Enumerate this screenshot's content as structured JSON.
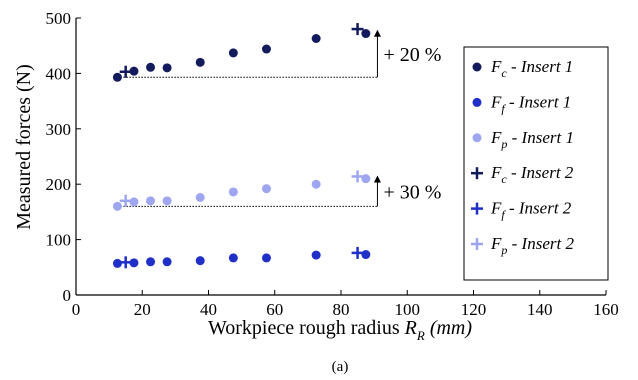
{
  "chart_data": {
    "type": "scatter",
    "xlabel": "Workpiece rough radius R_R (mm)",
    "xlabel_prefix": "Workpiece rough radius ",
    "xlabel_var": "R",
    "xlabel_sub": "R",
    "xlabel_unit": " (mm)",
    "ylabel": "Measured forces (N)",
    "xlim": [
      0,
      160
    ],
    "ylim": [
      0,
      500
    ],
    "xticks": [
      0,
      20,
      40,
      60,
      80,
      100,
      120,
      140,
      160
    ],
    "yticks": [
      0,
      100,
      200,
      300,
      400,
      500
    ],
    "grid": false,
    "legend_position": "right",
    "colors": {
      "fc": "#141b5c",
      "ff": "#1f2fc8",
      "fp": "#9ea6f0"
    },
    "series": [
      {
        "name": "Fc - Insert 1",
        "var": "F",
        "sub": "c",
        "label_tail": " - Insert 1",
        "marker": "circle",
        "color": "#141b5c",
        "x": [
          12.5,
          17.5,
          22.5,
          27.5,
          37.5,
          47.5,
          57.5,
          72.5,
          87.5
        ],
        "y": [
          393,
          404,
          411,
          410,
          420,
          437,
          444,
          463,
          472
        ]
      },
      {
        "name": "Ff - Insert 1",
        "var": "F",
        "sub": "f",
        "label_tail": " - Insert 1",
        "marker": "circle",
        "color": "#1f2fc8",
        "x": [
          12.5,
          17.5,
          22.5,
          27.5,
          37.5,
          47.5,
          57.5,
          72.5,
          87.5
        ],
        "y": [
          57,
          58,
          60,
          60,
          62,
          67,
          67,
          72,
          73
        ]
      },
      {
        "name": "Fp - Insert 1",
        "var": "F",
        "sub": "p",
        "label_tail": " - Insert 1",
        "marker": "circle",
        "color": "#9ea6f0",
        "x": [
          12.5,
          17.5,
          22.5,
          27.5,
          37.5,
          47.5,
          57.5,
          72.5,
          87.5
        ],
        "y": [
          160,
          168,
          170,
          170,
          176,
          186,
          192,
          200,
          210
        ]
      },
      {
        "name": "Fc - Insert 2",
        "var": "F",
        "sub": "c",
        "label_tail": " - Insert 2",
        "marker": "plus",
        "color": "#141b5c",
        "x": [
          15,
          85
        ],
        "y": [
          403,
          480
        ]
      },
      {
        "name": "Ff - Insert 2",
        "var": "F",
        "sub": "f",
        "label_tail": " - Insert 2",
        "marker": "plus",
        "color": "#1f2fc8",
        "x": [
          15,
          85
        ],
        "y": [
          59,
          76
        ]
      },
      {
        "name": "Fp - Insert 2",
        "var": "F",
        "sub": "p",
        "label_tail": " - Insert 2",
        "marker": "plus",
        "color": "#9ea6f0",
        "x": [
          15,
          85
        ],
        "y": [
          170,
          214
        ]
      }
    ],
    "annotations": [
      {
        "text": "+ 20 %",
        "x_from": 12.5,
        "x_to": 91,
        "y_base": 393,
        "y_top": 477
      },
      {
        "text": "+ 30 %",
        "x_from": 12.5,
        "x_to": 91,
        "y_base": 160,
        "y_top": 214
      }
    ],
    "caption": "(a)"
  }
}
